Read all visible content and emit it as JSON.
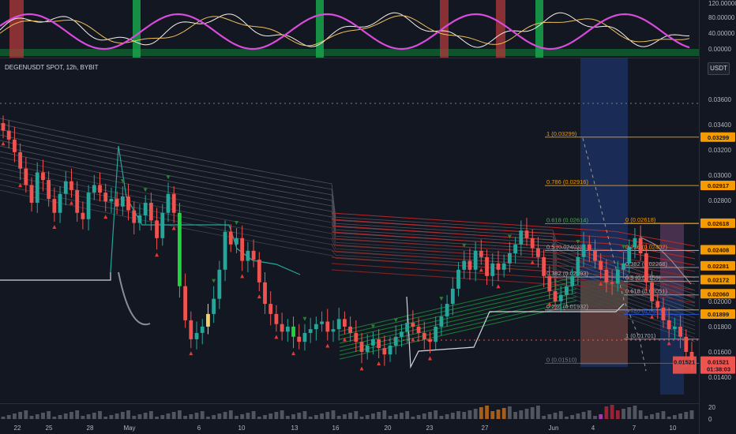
{
  "header": {
    "symbol": "DEGENUSDT SPOT, 12h, BYBIT",
    "currency": "USDT"
  },
  "oscillator": {
    "yticks": [
      "120.00000",
      "80.00000",
      "40.00000",
      "0.00000"
    ]
  },
  "price_axis": {
    "ticks": [
      "0.03600",
      "0.03400",
      "0.03200",
      "0.03000",
      "0.02800",
      "0.02000",
      "0.01800",
      "0.01600",
      "0.01400"
    ]
  },
  "price_badges": [
    {
      "value": "0.03299",
      "price": 0.03299
    },
    {
      "value": "0.02917",
      "price": 0.02917
    },
    {
      "value": "0.02618",
      "price": 0.02618
    },
    {
      "value": "0.02408",
      "price": 0.02408
    },
    {
      "value": "0.02281",
      "price": 0.02281
    },
    {
      "value": "0.02172",
      "price": 0.02172
    },
    {
      "value": "0.02060",
      "price": 0.0206
    },
    {
      "value": "0.01899",
      "price": 0.01899
    }
  ],
  "last_price": {
    "value": "0.01521",
    "countdown": "01:38:03",
    "price": 0.01521
  },
  "fib_left": [
    {
      "label": "1 (0.03299)",
      "price": 0.03299
    },
    {
      "label": "0.786 (0.02916)",
      "price": 0.02916
    },
    {
      "label": "0.618 (0.02614)",
      "price": 0.02614
    },
    {
      "label": "0.5 (0.02403)",
      "price": 0.02403
    },
    {
      "label": "0.382 (0.02193)",
      "price": 0.02193
    },
    {
      "label": "0.236 (0.01932)",
      "price": 0.01932
    },
    {
      "label": "0 (0.01510)",
      "price": 0.0151
    }
  ],
  "fib_right": [
    {
      "label": "0 (0.02618)",
      "price": 0.02618
    },
    {
      "label": "0.236 (0.02402)",
      "price": 0.02402
    },
    {
      "label": "0.382 (0.02268)",
      "price": 0.02268
    },
    {
      "label": "0.5 (0.02159)",
      "price": 0.02159
    },
    {
      "label": "0.618 (0.02051)",
      "price": 0.02051
    },
    {
      "label": "0.786 (0.01897)",
      "price": 0.01897
    },
    {
      "label": "1 (0.01701)",
      "price": 0.01701
    }
  ],
  "volume_axis": {
    "ticks": [
      "20",
      "0"
    ]
  },
  "colors": {
    "up": "#26a69a",
    "down": "#ef5350",
    "bg": "#131722",
    "fib_orange": "#f59b00",
    "osc_purple": "#d94bdb",
    "osc_yellow": "#f0c05a"
  },
  "chart_data": {
    "type": "candlestick",
    "title": "DEGENUSDT SPOT, 12h, BYBIT",
    "x_ticks": [
      "22",
      "25",
      "28",
      "May",
      "6",
      "10",
      "13",
      "16",
      "20",
      "23",
      "27",
      "Jun",
      "4",
      "7",
      "10"
    ],
    "ylim": [
      0.0134,
      0.0376
    ],
    "closes": [
      0.0335,
      0.0328,
      0.0318,
      0.0305,
      0.0292,
      0.0278,
      0.0302,
      0.0296,
      0.0281,
      0.027,
      0.0285,
      0.0295,
      0.0288,
      0.027,
      0.0265,
      0.0286,
      0.0292,
      0.0286,
      0.0279,
      0.0281,
      0.0275,
      0.0283,
      0.0272,
      0.0262,
      0.0268,
      0.0278,
      0.0264,
      0.025,
      0.027,
      0.0285,
      0.027,
      0.0212,
      0.0185,
      0.017,
      0.0175,
      0.018,
      0.019,
      0.0202,
      0.0225,
      0.0255,
      0.0245,
      0.025,
      0.0232,
      0.024,
      0.0233,
      0.0215,
      0.0198,
      0.019,
      0.0182,
      0.0176,
      0.018,
      0.0172,
      0.0168,
      0.0175,
      0.0178,
      0.0182,
      0.0184,
      0.0176,
      0.0178,
      0.0186,
      0.018,
      0.0175,
      0.0168,
      0.016,
      0.0165,
      0.017,
      0.0163,
      0.0158,
      0.0165,
      0.0172,
      0.0176,
      0.0183,
      0.018,
      0.0175,
      0.017,
      0.0168,
      0.018,
      0.0188,
      0.0198,
      0.021,
      0.0225,
      0.0232,
      0.0225,
      0.024,
      0.0235,
      0.022,
      0.023,
      0.0225,
      0.023,
      0.0238,
      0.0245,
      0.0256,
      0.025,
      0.0242,
      0.0235,
      0.022,
      0.0208,
      0.02,
      0.0205,
      0.0212,
      0.022,
      0.0235,
      0.0245,
      0.024,
      0.0232,
      0.0225,
      0.0215,
      0.0214,
      0.0225,
      0.023,
      0.0243,
      0.025,
      0.0238,
      0.0215,
      0.02,
      0.0195,
      0.0185,
      0.0178,
      0.018,
      0.0172,
      0.016,
      0.0152
    ]
  }
}
